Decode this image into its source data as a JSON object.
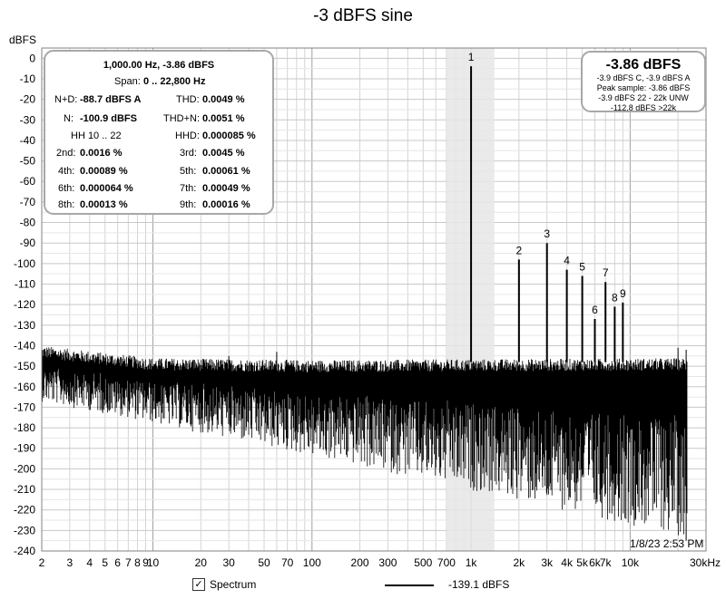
{
  "title": "-3 dBFS sine",
  "stats": {
    "freq_level": "1,000.00 Hz, -3.86 dBFS",
    "span_label": "Span:",
    "span_value": "0 .. 22,800 Hz",
    "nd_label": "N+D:",
    "nd_value": "-88.7 dBFS A",
    "thd_label": "THD:",
    "thd_value": "0.0049 %",
    "n_label": "N:",
    "n_value": "-100.9 dBFS",
    "thdn_label": "THD+N:",
    "thdn_value": "0.0051 %",
    "hh_label": "HH 10 .. 22",
    "hhd_label": "HHD:",
    "hhd_value": "0.000085 %",
    "h2_label": "2nd:",
    "h2_value": "0.0016 %",
    "h3_label": "3rd:",
    "h3_value": "0.0045 %",
    "h4_label": "4th:",
    "h4_value": "0.00089 %",
    "h5_label": "5th:",
    "h5_value": "0.00061 %",
    "h6_label": "6th:",
    "h6_value": "0.000064 %",
    "h7_label": "7th:",
    "h7_value": "0.00049 %",
    "h8_label": "8th:",
    "h8_value": "0.00013 %",
    "h9_label": "9th:",
    "h9_value": "0.00016 %"
  },
  "level_box": {
    "main": "-3.86 dBFS",
    "line1": "-3.9 dBFS C, -3.9 dBFS A",
    "line2": "Peak sample: -3.86 dBFS",
    "line3": "-3.9 dBFS 22 - 22k UNW",
    "line4": "-112.8 dBFS >22k"
  },
  "timestamp": "1/8/23 2:53 PM",
  "footer": {
    "checkbox_mark": "✓",
    "spectrum_label": "Spectrum",
    "legend_value": "-139.1 dBFS"
  },
  "chart_data": {
    "type": "line",
    "title": "-3 dBFS sine",
    "ylabel": "dBFS",
    "xlabel": "",
    "x_scale": "log",
    "xlim": [
      2,
      30000
    ],
    "ylim": [
      -240,
      5
    ],
    "grid": true,
    "y_ticks": [
      "0",
      "-10",
      "-20",
      "-30",
      "-40",
      "-50",
      "-60",
      "-70",
      "-80",
      "-90",
      "-100",
      "-110",
      "-120",
      "-130",
      "-140",
      "-150",
      "-160",
      "-170",
      "-180",
      "-190",
      "-200",
      "-210",
      "-220",
      "-230",
      "-240"
    ],
    "x_ticks": [
      {
        "v": 2,
        "label": "2"
      },
      {
        "v": 3,
        "label": "3"
      },
      {
        "v": 4,
        "label": "4"
      },
      {
        "v": 5,
        "label": "5"
      },
      {
        "v": 6,
        "label": "6"
      },
      {
        "v": 7,
        "label": "7"
      },
      {
        "v": 8,
        "label": "8"
      },
      {
        "v": 9,
        "label": "9"
      },
      {
        "v": 10,
        "label": "10"
      },
      {
        "v": 20,
        "label": "20"
      },
      {
        "v": 30,
        "label": "30"
      },
      {
        "v": 50,
        "label": "50"
      },
      {
        "v": 70,
        "label": "70"
      },
      {
        "v": 100,
        "label": "100"
      },
      {
        "v": 200,
        "label": "200"
      },
      {
        "v": 300,
        "label": "300"
      },
      {
        "v": 500,
        "label": "500"
      },
      {
        "v": 700,
        "label": "700"
      },
      {
        "v": 1000,
        "label": "1k"
      },
      {
        "v": 2000,
        "label": "2k"
      },
      {
        "v": 3000,
        "label": "3k"
      },
      {
        "v": 4000,
        "label": "4k"
      },
      {
        "v": 5000,
        "label": "5k"
      },
      {
        "v": 6000,
        "label": "6k"
      },
      {
        "v": 7000,
        "label": "7k"
      },
      {
        "v": 10000,
        "label": "10k"
      },
      {
        "v": 30000,
        "label": "30kHz"
      }
    ],
    "highlight_band": [
      700,
      1400
    ],
    "series": [
      {
        "name": "Spectrum",
        "color": "#000000",
        "peaks": [
          {
            "label": "1",
            "x": 1000,
            "y": -3.9
          },
          {
            "label": "2",
            "x": 2000,
            "y": -98
          },
          {
            "label": "3",
            "x": 3000,
            "y": -90
          },
          {
            "label": "4",
            "x": 4000,
            "y": -103
          },
          {
            "label": "5",
            "x": 5000,
            "y": -106
          },
          {
            "label": "6",
            "x": 6000,
            "y": -127
          },
          {
            "label": "7",
            "x": 7000,
            "y": -109
          },
          {
            "label": "8",
            "x": 8000,
            "y": -121
          },
          {
            "label": "9",
            "x": 9000,
            "y": -119
          }
        ],
        "noise_floor_top": [
          [
            2,
            -142
          ],
          [
            10,
            -148
          ],
          [
            100,
            -149
          ],
          [
            30000,
            -148
          ]
        ],
        "noise_floor_bottom": [
          [
            2,
            -165
          ],
          [
            10,
            -175
          ],
          [
            100,
            -190
          ],
          [
            1000,
            -205
          ],
          [
            10000,
            -220
          ],
          [
            30000,
            -228
          ]
        ]
      }
    ]
  }
}
